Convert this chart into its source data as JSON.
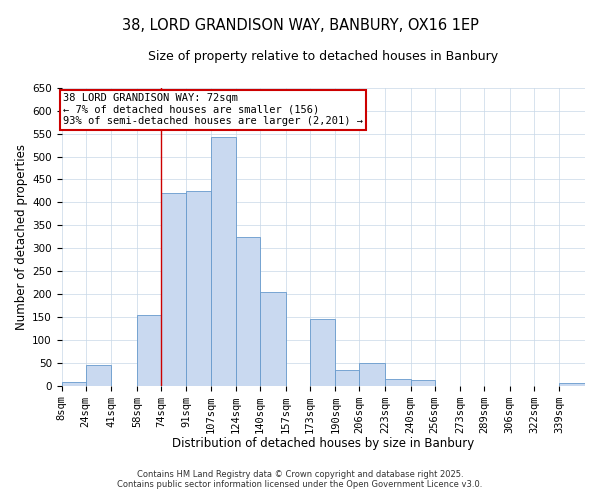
{
  "title": "38, LORD GRANDISON WAY, BANBURY, OX16 1EP",
  "subtitle": "Size of property relative to detached houses in Banbury",
  "xlabel": "Distribution of detached houses by size in Banbury",
  "ylabel": "Number of detached properties",
  "categories": [
    "8sqm",
    "24sqm",
    "41sqm",
    "58sqm",
    "74sqm",
    "91sqm",
    "107sqm",
    "124sqm",
    "140sqm",
    "157sqm",
    "173sqm",
    "190sqm",
    "206sqm",
    "223sqm",
    "240sqm",
    "256sqm",
    "273sqm",
    "289sqm",
    "306sqm",
    "322sqm",
    "339sqm"
  ],
  "bin_edges": [
    8,
    24,
    41,
    58,
    74,
    91,
    107,
    124,
    140,
    157,
    173,
    190,
    206,
    223,
    240,
    256,
    273,
    289,
    306,
    322,
    339,
    356
  ],
  "values": [
    8,
    45,
    0,
    155,
    420,
    425,
    543,
    325,
    205,
    0,
    145,
    35,
    50,
    15,
    13,
    0,
    0,
    0,
    0,
    0,
    5
  ],
  "bar_color": "#c9d9f0",
  "bar_edge_color": "#6699cc",
  "property_line_x": 74,
  "annotation_line1": "38 LORD GRANDISON WAY: 72sqm",
  "annotation_line2": "← 7% of detached houses are smaller (156)",
  "annotation_line3": "93% of semi-detached houses are larger (2,201) →",
  "annotation_box_color": "#cc0000",
  "ylim": [
    0,
    650
  ],
  "yticks": [
    0,
    50,
    100,
    150,
    200,
    250,
    300,
    350,
    400,
    450,
    500,
    550,
    600,
    650
  ],
  "footer1": "Contains HM Land Registry data © Crown copyright and database right 2025.",
  "footer2": "Contains public sector information licensed under the Open Government Licence v3.0.",
  "bg_color": "#ffffff",
  "grid_color": "#c8d8e8",
  "title_fontsize": 10.5,
  "subtitle_fontsize": 9,
  "axis_label_fontsize": 8.5,
  "tick_fontsize": 7.5,
  "annotation_fontsize": 7.5,
  "footer_fontsize": 6
}
